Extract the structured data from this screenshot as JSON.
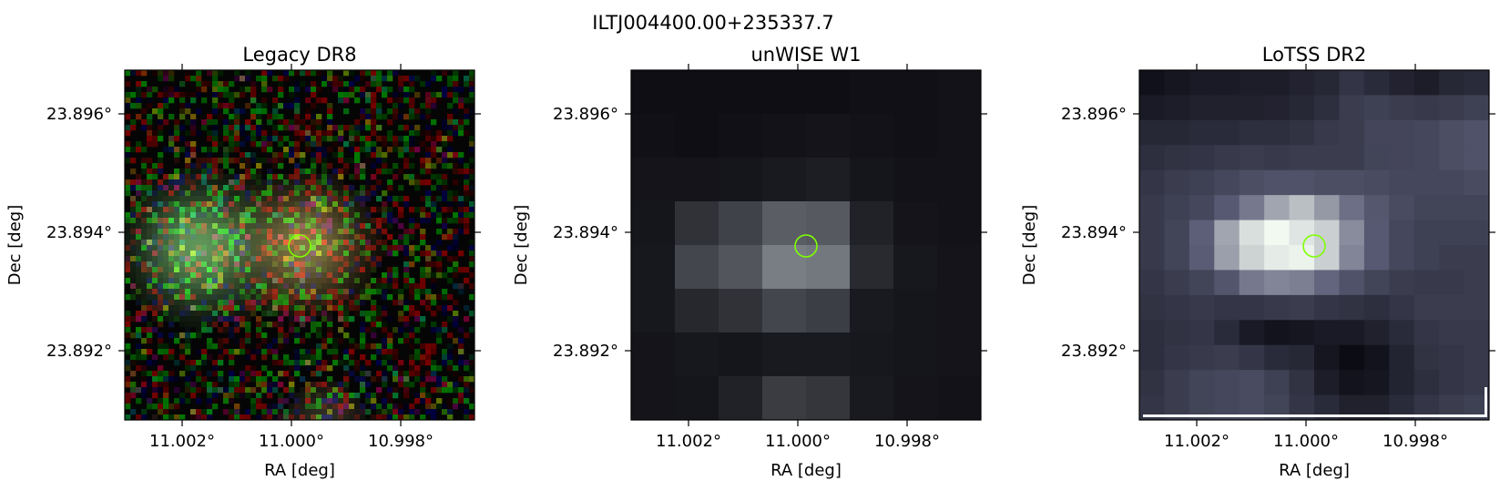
{
  "figure": {
    "title": "ILTJ004400.00+235337.7",
    "panels": [
      {
        "title": "Legacy DR8",
        "kind": "optical-rgb",
        "xlabel": "RA [deg]",
        "ylabel": "Dec [deg]",
        "x_ticks": [
          "11.002°",
          "11.000°",
          "10.998°"
        ],
        "y_ticks": [
          "23.896°",
          "23.894°",
          "23.892°"
        ],
        "marker": "source-circle"
      },
      {
        "title": "unWISE W1",
        "kind": "infrared-gray",
        "xlabel": "RA [deg]",
        "ylabel": "Dec [deg]",
        "x_ticks": [
          "11.002°",
          "11.000°",
          "10.998°"
        ],
        "y_ticks": [
          "23.896°",
          "23.894°",
          "23.892°"
        ],
        "marker": "source-circle"
      },
      {
        "title": "LoTSS DR2",
        "kind": "radio-bone",
        "xlabel": "RA [deg]",
        "ylabel": "Dec [deg]",
        "x_ticks": [
          "11.002°",
          "11.000°",
          "10.998°"
        ],
        "y_ticks": [
          "23.896°",
          "23.894°",
          "23.892°"
        ],
        "marker": "source-circle"
      }
    ],
    "colors": {
      "marker": "#7fff00",
      "axes": "#000000",
      "background": "#ffffff"
    }
  }
}
